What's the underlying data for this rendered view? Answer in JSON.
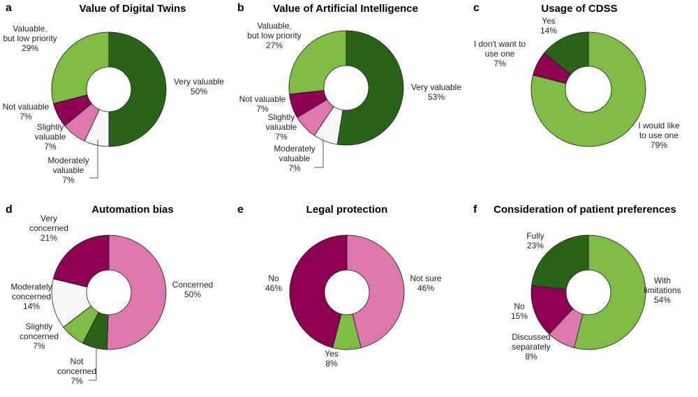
{
  "colors": {
    "dark_green": "#2a6419",
    "light_green": "#7fbc45",
    "dark_magenta": "#8e0152",
    "pink": "#de77ae",
    "light_gray": "#f7f7f7"
  },
  "chart_data": [
    {
      "type": "pie",
      "letter": "a",
      "title": "Value of Digital Twins",
      "slices": [
        {
          "label": "Very valuable",
          "value": 50,
          "pct": "50%",
          "color": "#2a6419"
        },
        {
          "label": "Moderately valuable",
          "value": 7,
          "pct": "7%",
          "color": "#f7f7f7"
        },
        {
          "label": "Slightly valuable",
          "value": 7,
          "pct": "7%",
          "color": "#de77ae"
        },
        {
          "label": "Not valuable",
          "value": 7,
          "pct": "7%",
          "color": "#8e0152"
        },
        {
          "label": "Valuable, but low priority",
          "value": 29,
          "pct": "29%",
          "color": "#7fbc45"
        }
      ]
    },
    {
      "type": "pie",
      "letter": "b",
      "title": "Value of Artificial Intelligence",
      "slices": [
        {
          "label": "Very valuable",
          "value": 53,
          "pct": "53%",
          "color": "#2a6419"
        },
        {
          "label": "Moderately valuable",
          "value": 7,
          "pct": "7%",
          "color": "#f7f7f7"
        },
        {
          "label": "Slightly valuable",
          "value": 7,
          "pct": "7%",
          "color": "#de77ae"
        },
        {
          "label": "Not valuable",
          "value": 7,
          "pct": "7%",
          "color": "#8e0152"
        },
        {
          "label": "Valuable, but low priority",
          "value": 27,
          "pct": "27%",
          "color": "#7fbc45"
        }
      ]
    },
    {
      "type": "pie",
      "letter": "c",
      "title": "Usage of CDSS",
      "slices": [
        {
          "label": "I would like to use one",
          "value": 79,
          "pct": "79%",
          "color": "#7fbc45"
        },
        {
          "label": "I don't want to use one",
          "value": 7,
          "pct": "7%",
          "color": "#8e0152"
        },
        {
          "label": "Yes",
          "value": 14,
          "pct": "14%",
          "color": "#2a6419"
        }
      ]
    },
    {
      "type": "pie",
      "letter": "d",
      "title": "Automation bias",
      "slices": [
        {
          "label": "Concerned",
          "value": 50,
          "pct": "50%",
          "color": "#de77ae"
        },
        {
          "label": "Not concerned",
          "value": 7,
          "pct": "7%",
          "color": "#2a6419"
        },
        {
          "label": "Slightly concerned",
          "value": 7,
          "pct": "7%",
          "color": "#7fbc45"
        },
        {
          "label": "Moderately concerned",
          "value": 14,
          "pct": "14%",
          "color": "#f7f7f7"
        },
        {
          "label": "Very concerned",
          "value": 21,
          "pct": "21%",
          "color": "#8e0152"
        }
      ]
    },
    {
      "type": "pie",
      "letter": "e",
      "title": "Legal protection",
      "slices": [
        {
          "label": "Not sure",
          "value": 46,
          "pct": "46%",
          "color": "#de77ae"
        },
        {
          "label": "Yes",
          "value": 8,
          "pct": "8%",
          "color": "#7fbc45"
        },
        {
          "label": "No",
          "value": 46,
          "pct": "46%",
          "color": "#8e0152"
        }
      ]
    },
    {
      "type": "pie",
      "letter": "f",
      "title": "Consideration of patient preferences",
      "slices": [
        {
          "label": "With limitations",
          "value": 54,
          "pct": "54%",
          "color": "#7fbc45"
        },
        {
          "label": "Discussed separately",
          "value": 8,
          "pct": "8%",
          "color": "#de77ae"
        },
        {
          "label": "No",
          "value": 15,
          "pct": "15%",
          "color": "#8e0152"
        },
        {
          "label": "Fully",
          "value": 23,
          "pct": "23%",
          "color": "#2a6419"
        }
      ]
    }
  ]
}
